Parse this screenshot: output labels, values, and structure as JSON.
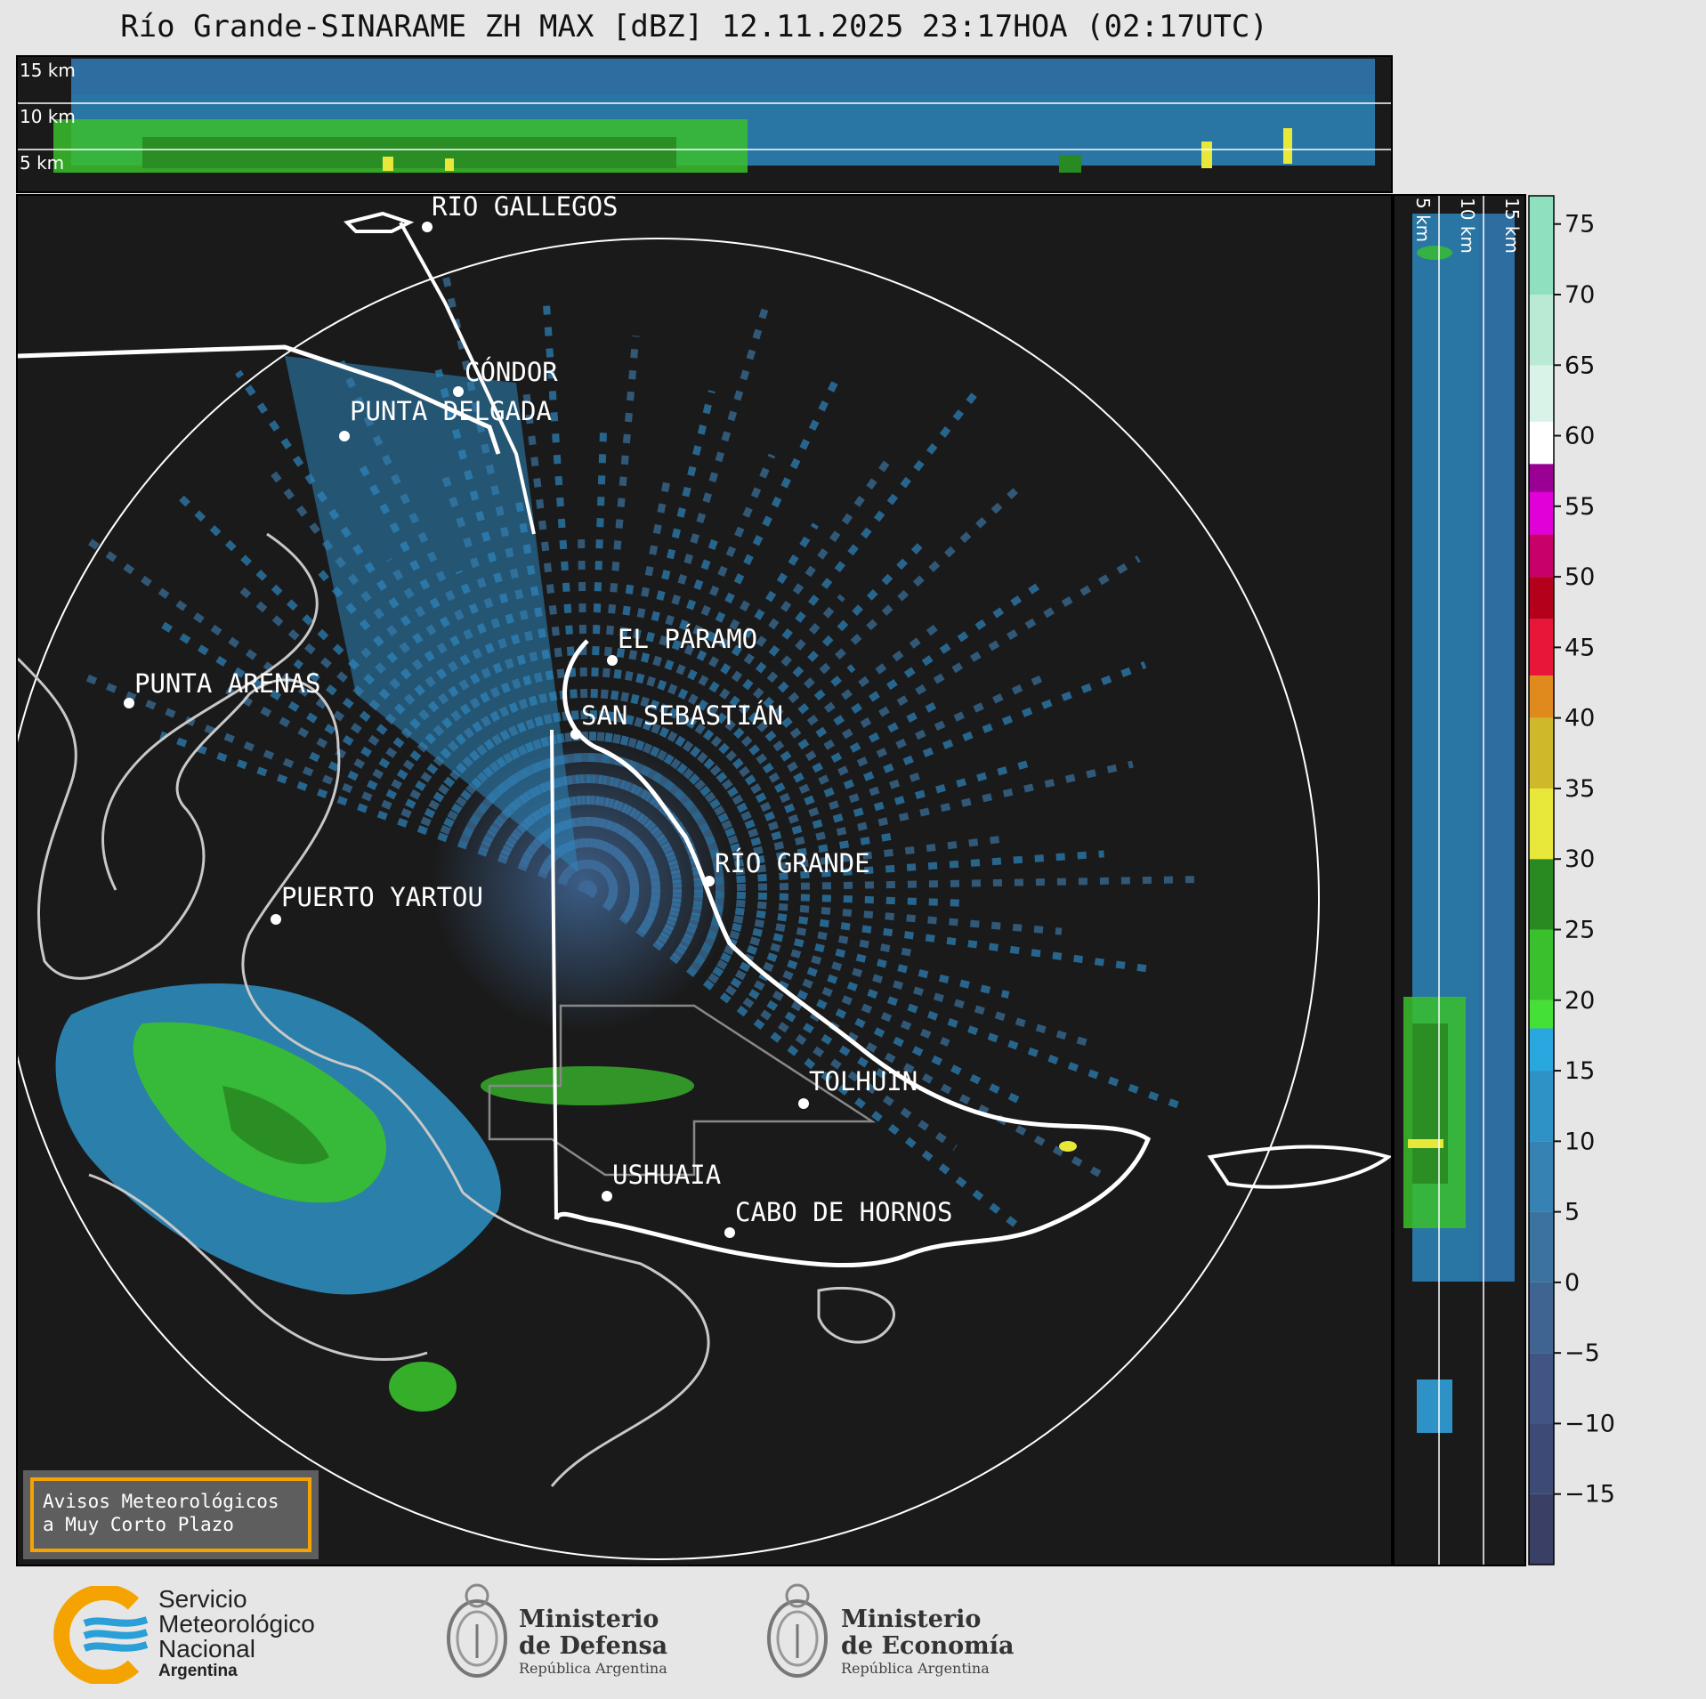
{
  "title": "Río Grande-SINARAME ZH MAX [dBZ] 12.11.2025 23:17HOA (02:17UTC)",
  "top_panel": {
    "height_labels": [
      "15 km",
      "10 km",
      "5 km"
    ]
  },
  "side_panel": {
    "height_labels": [
      "5 km",
      "10 km",
      "15 km"
    ]
  },
  "locations": [
    {
      "name": "RÍO GALLEGOS"
    },
    {
      "name": "CÓNDOR"
    },
    {
      "name": "PUNTA DELGADA"
    },
    {
      "name": "PUNTA ARENAS"
    },
    {
      "name": "EL PÁRAMO"
    },
    {
      "name": "SAN SEBASTIÁN"
    },
    {
      "name": "RÍO GRANDE"
    },
    {
      "name": "PUERTO YARTOU"
    },
    {
      "name": "TOLHUIN"
    },
    {
      "name": "USHUAIA"
    },
    {
      "name": "CABO DE HORNOS"
    }
  ],
  "notice": {
    "line1": "Avisos Meteorológicos",
    "line2": "a Muy Corto Plazo"
  },
  "colorbar": {
    "min": -20,
    "max": 77,
    "ticks": [
      "75",
      "70",
      "65",
      "60",
      "55",
      "50",
      "45",
      "40",
      "35",
      "30",
      "25",
      "20",
      "15",
      "10",
      "5",
      "0",
      "−5",
      "−10",
      "−15"
    ],
    "tick_values": [
      75,
      70,
      65,
      60,
      55,
      50,
      45,
      40,
      35,
      30,
      25,
      20,
      15,
      10,
      5,
      0,
      -5,
      -10,
      -15
    ],
    "bands": [
      {
        "from": -20,
        "to": -15,
        "color": "#3a3f66"
      },
      {
        "from": -15,
        "to": -10,
        "color": "#3d4a75"
      },
      {
        "from": -10,
        "to": -5,
        "color": "#405583"
      },
      {
        "from": -5,
        "to": 0,
        "color": "#3f6491"
      },
      {
        "from": 0,
        "to": 5,
        "color": "#3b739f"
      },
      {
        "from": 5,
        "to": 10,
        "color": "#3582b3"
      },
      {
        "from": 10,
        "to": 15,
        "color": "#2e92c6"
      },
      {
        "from": 15,
        "to": 18,
        "color": "#29a7df"
      },
      {
        "from": 18,
        "to": 20,
        "color": "#45e035"
      },
      {
        "from": 20,
        "to": 25,
        "color": "#39c02c"
      },
      {
        "from": 25,
        "to": 30,
        "color": "#2a8a22"
      },
      {
        "from": 30,
        "to": 35,
        "color": "#e8e83a"
      },
      {
        "from": 35,
        "to": 40,
        "color": "#cfb92a"
      },
      {
        "from": 40,
        "to": 43,
        "color": "#e08a1e"
      },
      {
        "from": 43,
        "to": 47,
        "color": "#e8173a"
      },
      {
        "from": 47,
        "to": 50,
        "color": "#b5001c"
      },
      {
        "from": 50,
        "to": 53,
        "color": "#c8006a"
      },
      {
        "from": 53,
        "to": 56,
        "color": "#e000d8"
      },
      {
        "from": 56,
        "to": 58,
        "color": "#9a0094"
      },
      {
        "from": 58,
        "to": 61,
        "color": "#ffffff"
      },
      {
        "from": 61,
        "to": 65,
        "color": "#d9f3e8"
      },
      {
        "from": 65,
        "to": 70,
        "color": "#b8ead4"
      },
      {
        "from": 70,
        "to": 77,
        "color": "#8fe0bf"
      }
    ]
  },
  "logos": {
    "smn": {
      "line1": "Servicio",
      "line2": "Meteorológico",
      "line3": "Nacional",
      "line4": "Argentina"
    },
    "defensa": {
      "line1": "Ministerio",
      "line2": "de Defensa",
      "line3": "República Argentina"
    },
    "economia": {
      "line1": "Ministerio",
      "line2": "de Economía",
      "line3": "República Argentina"
    }
  },
  "colors": {
    "background": "#1a1a1a",
    "echo_blue": "#2e92c6",
    "echo_green": "#39c02c",
    "echo_yellow": "#e8e83a",
    "smn_orange": "#f5a300",
    "smn_blue": "#2a9fd8"
  }
}
